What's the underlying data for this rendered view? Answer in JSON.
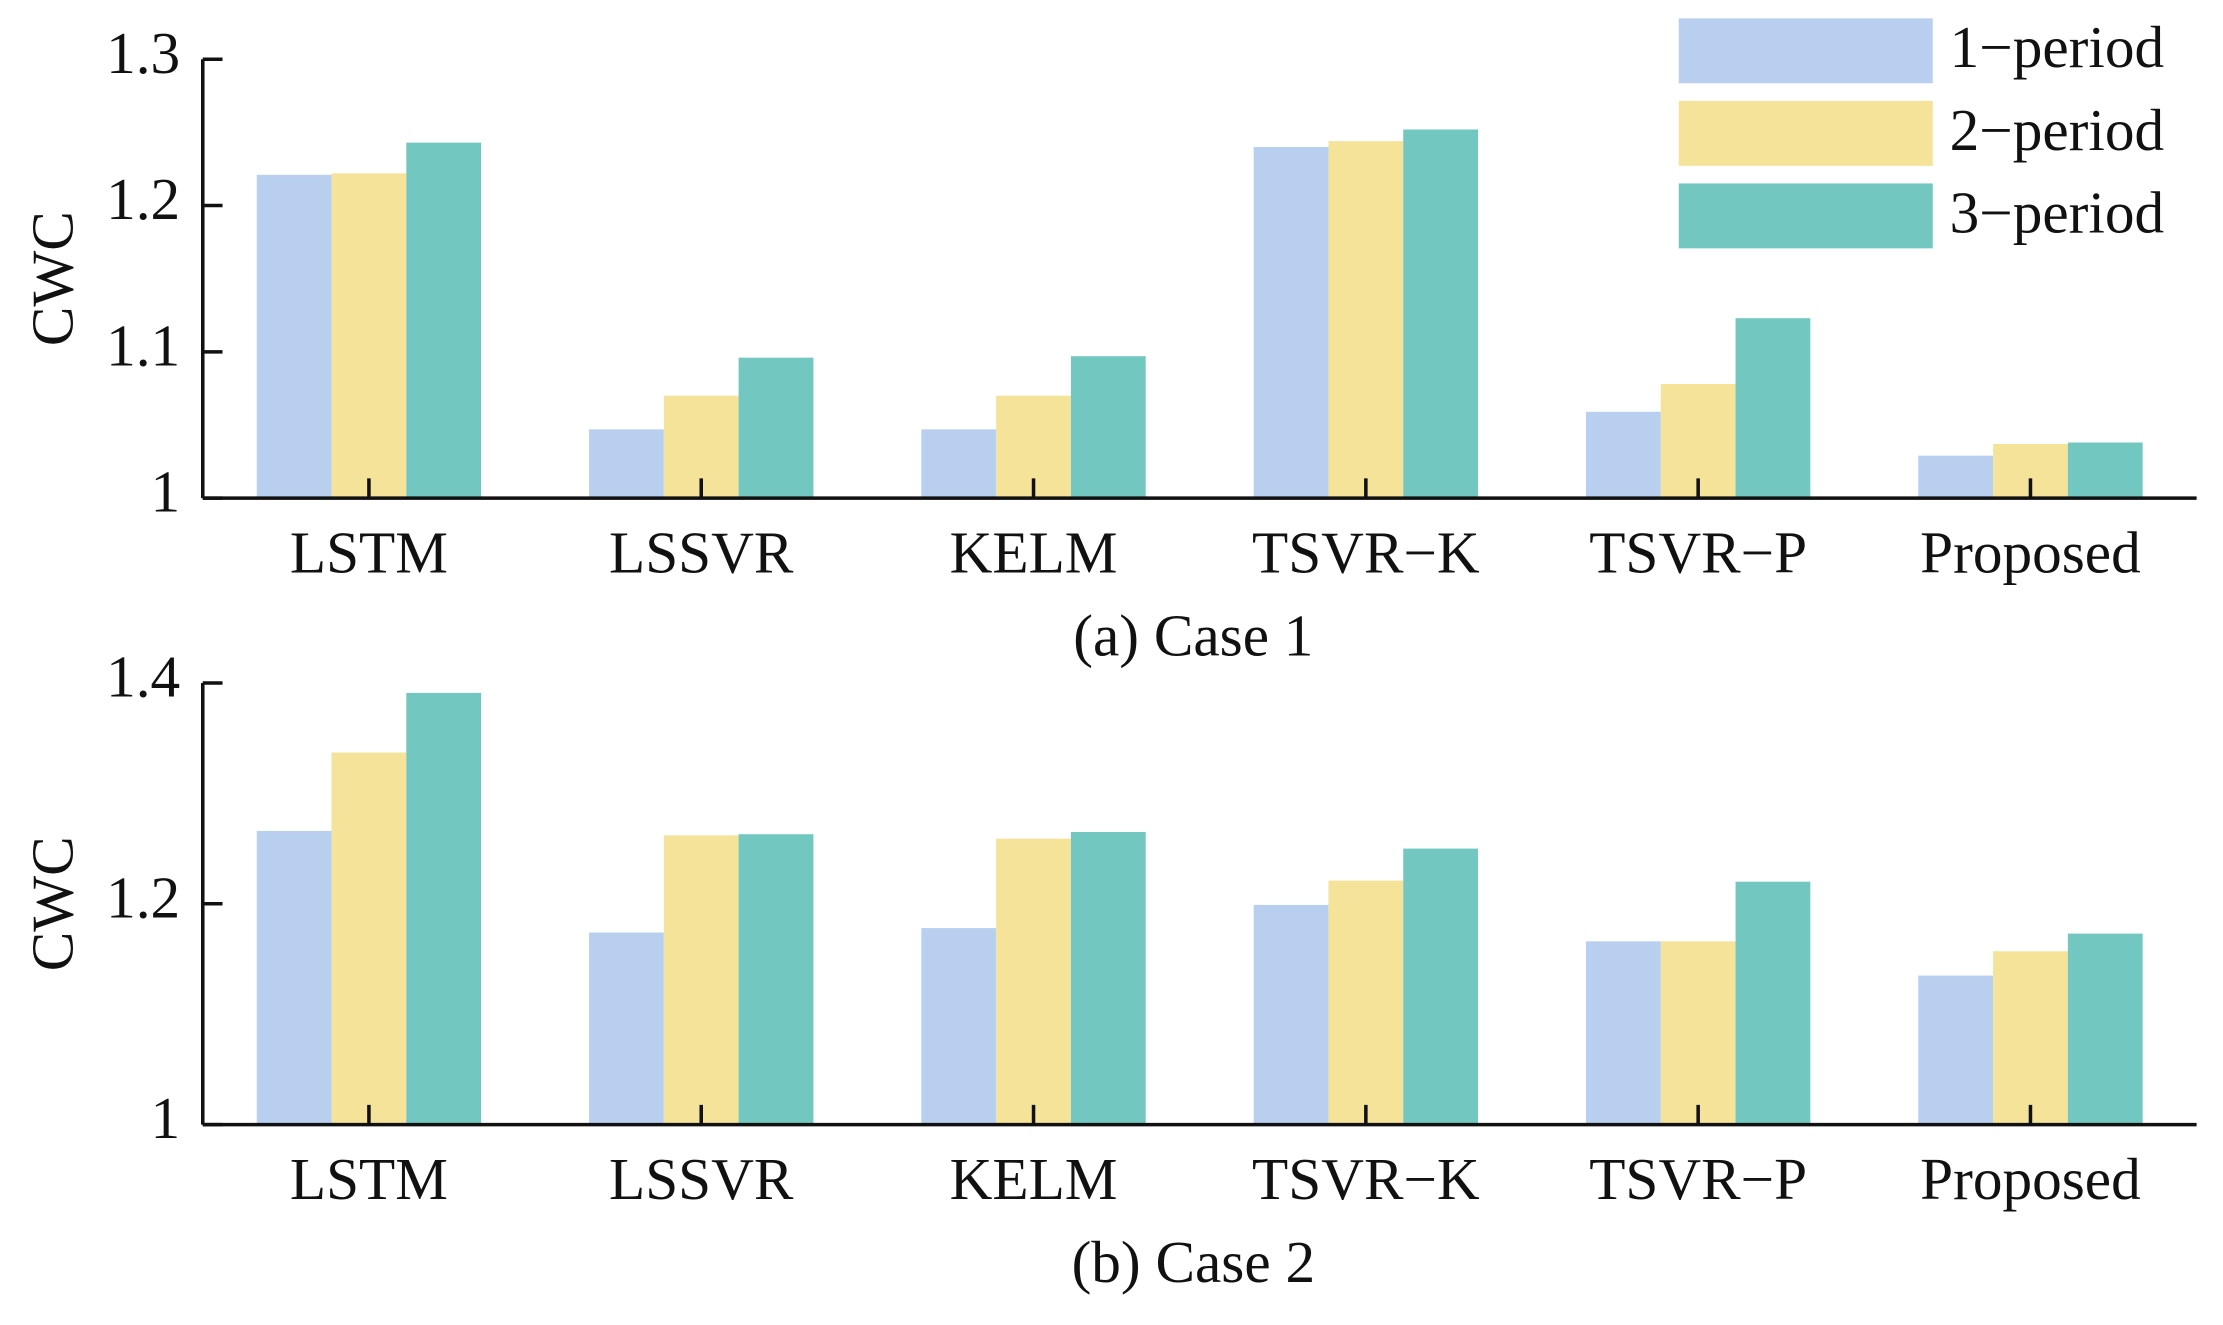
{
  "chart_data": [
    {
      "type": "bar",
      "title": "(a) Case 1",
      "ylabel": "CWC",
      "categories": [
        "LSTM",
        "LSSVR",
        "KELM",
        "TSVR−K",
        "TSVR−P",
        "Proposed"
      ],
      "series": [
        {
          "name": "1−period",
          "color": "#b8cff0",
          "values": [
            1.221,
            1.047,
            1.047,
            1.24,
            1.059,
            1.029
          ]
        },
        {
          "name": "2−period",
          "color": "#f5e39a",
          "values": [
            1.222,
            1.07,
            1.07,
            1.244,
            1.078,
            1.037
          ]
        },
        {
          "name": "3−period",
          "color": "#72c7c0",
          "values": [
            1.243,
            1.096,
            1.097,
            1.252,
            1.123,
            1.038
          ]
        }
      ],
      "ylim": [
        1,
        1.3
      ],
      "yticks": [
        1,
        1.1,
        1.2,
        1.3
      ],
      "legend": "upper right"
    },
    {
      "type": "bar",
      "title": "(b) Case 2",
      "ylabel": "CWC",
      "categories": [
        "LSTM",
        "LSSVR",
        "KELM",
        "TSVR−K",
        "TSVR−P",
        "Proposed"
      ],
      "series": [
        {
          "color": "#b8cff0",
          "values": [
            1.266,
            1.174,
            1.178,
            1.199,
            1.166,
            1.135
          ]
        },
        {
          "color": "#f5e39a",
          "values": [
            1.337,
            1.262,
            1.259,
            1.221,
            1.166,
            1.157
          ]
        },
        {
          "color": "#72c7c0",
          "values": [
            1.391,
            1.263,
            1.265,
            1.25,
            1.22,
            1.173
          ]
        }
      ],
      "ylim": [
        1,
        1.4
      ],
      "yticks": [
        1,
        1.2,
        1.4
      ]
    }
  ]
}
